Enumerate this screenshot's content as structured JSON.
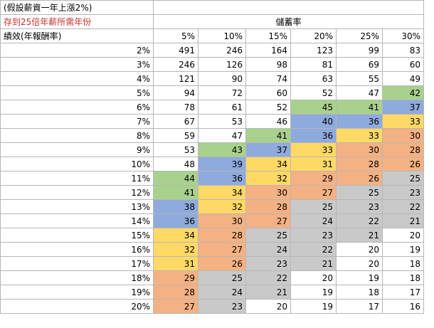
{
  "notes": {
    "line1": "(假設薪資一年上漲2%)",
    "line2": "存到25倍年薪所需年份",
    "line3": "績效(年報酬率)"
  },
  "header": {
    "title": "儲蓄率",
    "columns": [
      "5%",
      "10%",
      "15%",
      "20%",
      "25%",
      "30%"
    ]
  },
  "colors": {
    "green": "#a9d18e",
    "blue": "#8faadc",
    "yellow": "#ffd966",
    "orange": "#f4b183",
    "gray": "#c9c9c9",
    "lightblue": "#9dc3e6"
  },
  "rows": [
    {
      "label": "2%",
      "values": [
        491,
        246,
        164,
        123,
        99,
        83
      ],
      "colors": [
        "none",
        "none",
        "none",
        "none",
        "none",
        "none"
      ]
    },
    {
      "label": "3%",
      "values": [
        246,
        126,
        98,
        81,
        69,
        60
      ],
      "colors": [
        "none",
        "none",
        "none",
        "none",
        "none",
        "none"
      ]
    },
    {
      "label": "4%",
      "values": [
        121,
        90,
        74,
        63,
        55,
        49
      ],
      "colors": [
        "none",
        "none",
        "none",
        "none",
        "none",
        "none"
      ]
    },
    {
      "label": "5%",
      "values": [
        94,
        72,
        60,
        52,
        47,
        42
      ],
      "colors": [
        "none",
        "none",
        "none",
        "none",
        "none",
        "green"
      ]
    },
    {
      "label": "6%",
      "values": [
        78,
        61,
        52,
        45,
        41,
        37
      ],
      "colors": [
        "none",
        "none",
        "none",
        "green",
        "green",
        "blue"
      ]
    },
    {
      "label": "7%",
      "values": [
        67,
        53,
        46,
        40,
        36,
        33
      ],
      "colors": [
        "none",
        "none",
        "none",
        "blue",
        "blue",
        "yellow"
      ]
    },
    {
      "label": "8%",
      "values": [
        59,
        47,
        41,
        36,
        33,
        30
      ],
      "colors": [
        "none",
        "none",
        "green",
        "blue",
        "yellow",
        "orange"
      ]
    },
    {
      "label": "9%",
      "values": [
        53,
        43,
        37,
        33,
        30,
        28
      ],
      "colors": [
        "none",
        "green",
        "blue",
        "yellow",
        "orange",
        "orange"
      ]
    },
    {
      "label": "10%",
      "values": [
        48,
        39,
        34,
        31,
        28,
        26
      ],
      "colors": [
        "none",
        "blue",
        "yellow",
        "yellow",
        "orange",
        "orange"
      ]
    },
    {
      "label": "11%",
      "values": [
        44,
        36,
        32,
        29,
        26,
        25
      ],
      "colors": [
        "green",
        "blue",
        "yellow",
        "orange",
        "orange",
        "gray"
      ]
    },
    {
      "label": "12%",
      "values": [
        41,
        34,
        30,
        27,
        25,
        23
      ],
      "colors": [
        "green",
        "yellow",
        "orange",
        "orange",
        "gray",
        "gray"
      ]
    },
    {
      "label": "13%",
      "values": [
        38,
        32,
        28,
        25,
        23,
        22
      ],
      "colors": [
        "blue",
        "yellow",
        "orange",
        "gray",
        "gray",
        "gray"
      ]
    },
    {
      "label": "14%",
      "values": [
        36,
        30,
        27,
        24,
        22,
        21
      ],
      "colors": [
        "blue",
        "orange",
        "orange",
        "gray",
        "gray",
        "gray"
      ]
    },
    {
      "label": "15%",
      "values": [
        34,
        28,
        25,
        23,
        21,
        20
      ],
      "colors": [
        "yellow",
        "orange",
        "gray",
        "gray",
        "gray",
        "lightblue"
      ]
    },
    {
      "label": "16%",
      "values": [
        32,
        27,
        24,
        22,
        20,
        19
      ],
      "colors": [
        "yellow",
        "orange",
        "gray",
        "gray",
        "lightblue",
        "lightblue"
      ]
    },
    {
      "label": "17%",
      "values": [
        31,
        26,
        23,
        21,
        20,
        18
      ],
      "colors": [
        "yellow",
        "orange",
        "gray",
        "gray",
        "lightblue",
        "lightblue"
      ]
    },
    {
      "label": "18%",
      "values": [
        29,
        25,
        22,
        20,
        19,
        18
      ],
      "colors": [
        "orange",
        "gray",
        "gray",
        "lightblue",
        "lightblue",
        "lightblue"
      ]
    },
    {
      "label": "19%",
      "values": [
        28,
        24,
        21,
        19,
        18,
        17
      ],
      "colors": [
        "orange",
        "gray",
        "gray",
        "lightblue",
        "lightblue",
        "lightblue"
      ]
    },
    {
      "label": "20%",
      "values": [
        27,
        23,
        20,
        19,
        17,
        16
      ],
      "colors": [
        "orange",
        "gray",
        "lightblue",
        "lightblue",
        "lightblue",
        "lightblue"
      ]
    }
  ]
}
